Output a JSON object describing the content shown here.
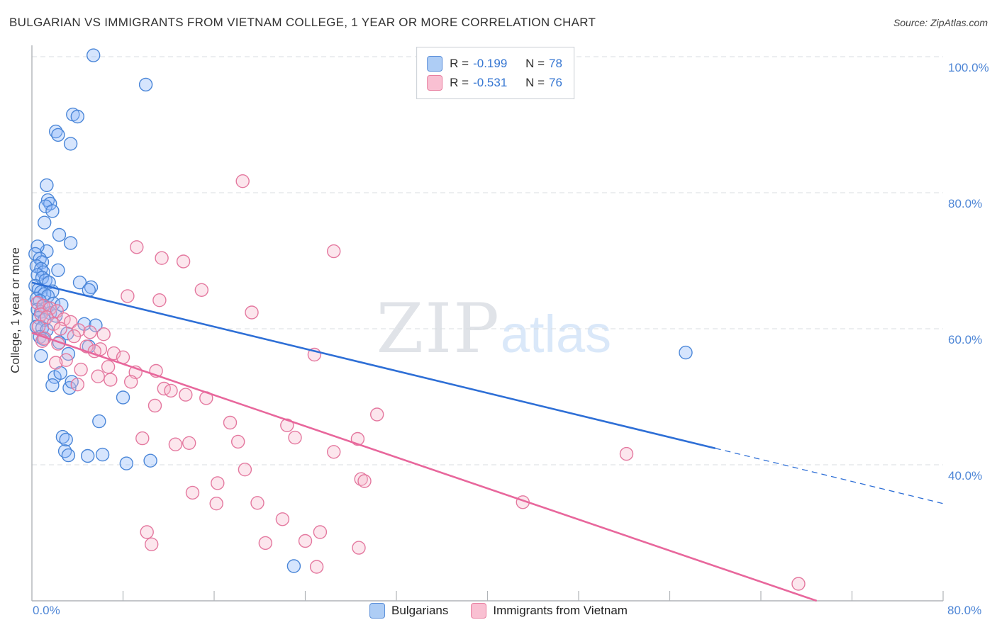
{
  "colors": {
    "accent_blue": "#3576d2",
    "blue_fill": "#8ab4f8",
    "blue_stroke": "#4a86d8",
    "blue_line": "#2e6fd6",
    "pink_fill": "#f7b8cc",
    "pink_stroke": "#e4789f",
    "pink_line": "#e8679c",
    "grid": "#d8dce0",
    "axis": "#b0b4b8"
  },
  "legend_box": {
    "rows": [
      {
        "r_label": "R =",
        "r_value": "-0.199",
        "n_label": "N =",
        "n_value": "78"
      },
      {
        "r_label": "R =",
        "r_value": "-0.531",
        "n_label": "N =",
        "n_value": "76"
      }
    ]
  },
  "watermark": {
    "zip": "ZIP",
    "atlas": "atlas"
  },
  "chart_data": {
    "type": "scatter",
    "title": "BULGARIAN VS IMMIGRANTS FROM VIETNAM COLLEGE, 1 YEAR OR MORE CORRELATION CHART",
    "source": "Source: ZipAtlas.com",
    "ylabel": "College, 1 year or more",
    "x_range": [
      0,
      80
    ],
    "y_range": [
      20,
      100
    ],
    "grid": "dashed-horizontal",
    "y_gridlines": [
      100,
      80,
      60,
      40
    ],
    "y_tick_labels": [
      "100.0%",
      "80.0%",
      "60.0%",
      "40.0%"
    ],
    "x_tick_labels": [
      "0.0%",
      "80.0%"
    ],
    "legend_position": "bottom-center",
    "series": [
      {
        "name": "Bulgarians",
        "R": -0.199,
        "N": 78,
        "fill": "#8ab4f8",
        "stroke": "#4a86d8",
        "line_color": "#2e6fd6",
        "trend": {
          "x1": 0,
          "y1": 66.8,
          "x2": 80,
          "y2": 34.3,
          "solid_until_x": 60
        },
        "points": [
          [
            5.4,
            100.2
          ],
          [
            10.0,
            95.9
          ],
          [
            3.6,
            91.5
          ],
          [
            4.0,
            91.2
          ],
          [
            2.1,
            89.0
          ],
          [
            2.3,
            88.5
          ],
          [
            3.4,
            87.2
          ],
          [
            1.3,
            81.1
          ],
          [
            1.4,
            78.9
          ],
          [
            1.6,
            78.4
          ],
          [
            1.2,
            78.0
          ],
          [
            1.8,
            77.3
          ],
          [
            1.1,
            75.6
          ],
          [
            2.4,
            73.8
          ],
          [
            3.4,
            72.6
          ],
          [
            1.3,
            71.4
          ],
          [
            0.5,
            72.1
          ],
          [
            0.3,
            71.0
          ],
          [
            0.7,
            70.3
          ],
          [
            0.9,
            69.8
          ],
          [
            0.4,
            69.2
          ],
          [
            0.8,
            68.8
          ],
          [
            1.0,
            68.3
          ],
          [
            2.3,
            68.6
          ],
          [
            0.5,
            67.9
          ],
          [
            0.9,
            67.5
          ],
          [
            1.2,
            67.1
          ],
          [
            1.5,
            66.8
          ],
          [
            4.2,
            66.8
          ],
          [
            5.2,
            66.1
          ],
          [
            5.0,
            65.7
          ],
          [
            0.3,
            66.3
          ],
          [
            0.6,
            65.8
          ],
          [
            0.8,
            65.4
          ],
          [
            1.8,
            65.5
          ],
          [
            1.1,
            65.1
          ],
          [
            1.4,
            64.8
          ],
          [
            0.4,
            64.4
          ],
          [
            0.7,
            64.1
          ],
          [
            1.9,
            63.7
          ],
          [
            1.0,
            63.3
          ],
          [
            1.3,
            63.1
          ],
          [
            2.6,
            63.5
          ],
          [
            0.5,
            62.8
          ],
          [
            0.8,
            62.5
          ],
          [
            1.6,
            62.3
          ],
          [
            2.1,
            61.9
          ],
          [
            0.6,
            61.6
          ],
          [
            1.1,
            61.3
          ],
          [
            4.6,
            60.7
          ],
          [
            5.6,
            60.5
          ],
          [
            0.4,
            60.3
          ],
          [
            0.9,
            60.1
          ],
          [
            1.3,
            59.8
          ],
          [
            3.1,
            59.3
          ],
          [
            0.7,
            58.8
          ],
          [
            1.0,
            58.5
          ],
          [
            2.4,
            58.0
          ],
          [
            5.0,
            57.4
          ],
          [
            3.2,
            56.3
          ],
          [
            0.8,
            56.0
          ],
          [
            57.4,
            56.5
          ],
          [
            2.0,
            52.9
          ],
          [
            2.5,
            53.5
          ],
          [
            3.3,
            51.3
          ],
          [
            1.8,
            51.7
          ],
          [
            3.5,
            52.2
          ],
          [
            8.0,
            49.9
          ],
          [
            5.9,
            46.4
          ],
          [
            2.7,
            44.1
          ],
          [
            3.0,
            43.7
          ],
          [
            2.9,
            42.0
          ],
          [
            3.2,
            41.4
          ],
          [
            4.9,
            41.3
          ],
          [
            6.2,
            41.5
          ],
          [
            8.3,
            40.2
          ],
          [
            10.4,
            40.6
          ],
          [
            23.0,
            25.1
          ]
        ]
      },
      {
        "name": "Immigrants from Vietnam",
        "R": -0.531,
        "N": 76,
        "fill": "#f7b8cc",
        "stroke": "#e4789f",
        "line_color": "#e8679c",
        "trend": {
          "x1": 0,
          "y1": 59.4,
          "x2": 68.9,
          "y2": 20.0,
          "solid_until_x": 68.9
        },
        "points": [
          [
            18.5,
            81.7
          ],
          [
            26.5,
            71.4
          ],
          [
            9.2,
            72.0
          ],
          [
            11.4,
            70.4
          ],
          [
            13.3,
            69.9
          ],
          [
            14.9,
            65.7
          ],
          [
            8.4,
            64.8
          ],
          [
            11.2,
            64.2
          ],
          [
            19.3,
            62.4
          ],
          [
            0.5,
            63.8
          ],
          [
            1.0,
            63.4
          ],
          [
            1.6,
            63.0
          ],
          [
            2.2,
            62.6
          ],
          [
            0.8,
            62.1
          ],
          [
            1.3,
            61.7
          ],
          [
            2.8,
            61.4
          ],
          [
            3.4,
            61.0
          ],
          [
            1.9,
            60.7
          ],
          [
            0.6,
            60.3
          ],
          [
            2.5,
            60.0
          ],
          [
            4.1,
            59.8
          ],
          [
            5.1,
            59.5
          ],
          [
            6.3,
            59.2
          ],
          [
            3.7,
            58.9
          ],
          [
            1.1,
            58.6
          ],
          [
            0.9,
            58.2
          ],
          [
            2.3,
            57.8
          ],
          [
            4.8,
            57.4
          ],
          [
            6.0,
            57.0
          ],
          [
            5.5,
            56.7
          ],
          [
            7.2,
            56.4
          ],
          [
            24.8,
            56.2
          ],
          [
            8.0,
            55.8
          ],
          [
            3.0,
            55.4
          ],
          [
            2.1,
            55.0
          ],
          [
            6.7,
            54.4
          ],
          [
            4.3,
            54.0
          ],
          [
            9.1,
            53.6
          ],
          [
            10.9,
            53.8
          ],
          [
            5.8,
            53.0
          ],
          [
            6.9,
            52.5
          ],
          [
            8.7,
            52.2
          ],
          [
            4.0,
            51.8
          ],
          [
            11.6,
            51.2
          ],
          [
            12.2,
            50.9
          ],
          [
            13.5,
            50.3
          ],
          [
            15.3,
            49.8
          ],
          [
            30.3,
            47.4
          ],
          [
            17.4,
            46.2
          ],
          [
            10.8,
            48.7
          ],
          [
            22.4,
            45.8
          ],
          [
            9.7,
            43.9
          ],
          [
            13.8,
            43.2
          ],
          [
            18.1,
            43.4
          ],
          [
            23.1,
            44.0
          ],
          [
            28.6,
            43.8
          ],
          [
            26.5,
            41.9
          ],
          [
            12.6,
            43.0
          ],
          [
            52.2,
            41.6
          ],
          [
            18.7,
            39.3
          ],
          [
            28.9,
            37.9
          ],
          [
            16.3,
            37.3
          ],
          [
            29.2,
            37.6
          ],
          [
            43.1,
            34.5
          ],
          [
            14.1,
            35.9
          ],
          [
            16.2,
            34.3
          ],
          [
            19.8,
            34.4
          ],
          [
            22.0,
            32.0
          ],
          [
            10.1,
            30.1
          ],
          [
            10.5,
            28.3
          ],
          [
            20.5,
            28.5
          ],
          [
            24.0,
            28.8
          ],
          [
            25.3,
            30.1
          ],
          [
            28.7,
            27.8
          ],
          [
            25.0,
            25.0
          ],
          [
            67.3,
            22.5
          ]
        ]
      }
    ]
  }
}
